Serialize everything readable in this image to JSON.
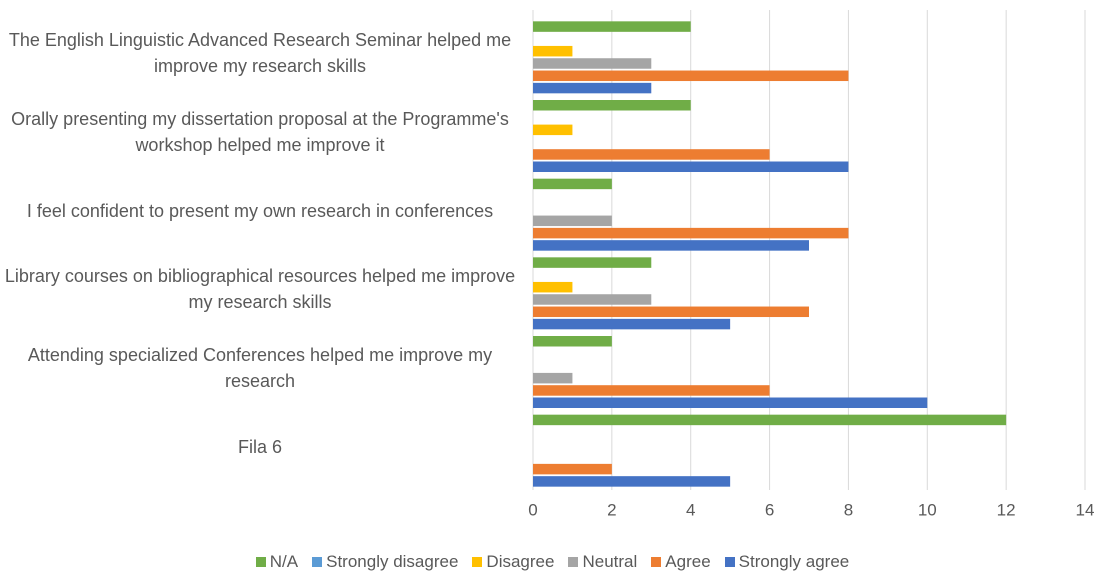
{
  "chart_data": {
    "type": "hbar",
    "categories": [
      "The English Linguistic Advanced Research Seminar helped me improve my research skills",
      "Orally presenting my dissertation proposal at the Programme's workshop helped me improve it",
      "I feel confident to present my own research in conferences",
      "Library courses on bibliographical resources helped me improve my research skills",
      "Attending specialized Conferences helped me improve my research",
      "Fila 6"
    ],
    "series": [
      {
        "name": "N/A",
        "color": "#70ad47",
        "values": [
          4,
          4,
          2,
          3,
          2,
          12
        ]
      },
      {
        "name": "Strongly disagree",
        "color": "#5b9bd5",
        "values": [
          0,
          0,
          0,
          0,
          0,
          0
        ]
      },
      {
        "name": "Disagree",
        "color": "#ffc000",
        "values": [
          1,
          1,
          0,
          1,
          0,
          0
        ]
      },
      {
        "name": "Neutral",
        "color": "#a5a5a5",
        "values": [
          3,
          0,
          2,
          3,
          1,
          0
        ]
      },
      {
        "name": "Agree",
        "color": "#ed7d31",
        "values": [
          8,
          6,
          8,
          7,
          6,
          2
        ]
      },
      {
        "name": "Strongly agree",
        "color": "#4472c4",
        "values": [
          3,
          8,
          7,
          5,
          10,
          5
        ]
      }
    ],
    "xlim": [
      0,
      14
    ],
    "xticks": [
      0,
      2,
      4,
      6,
      8,
      10,
      12,
      14
    ],
    "grid": true,
    "legend": "bottom"
  }
}
